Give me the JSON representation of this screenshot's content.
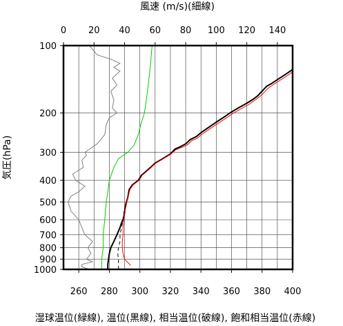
{
  "chart_data": {
    "type": "line",
    "title_top": "風速 (m/s)(細線)",
    "ylabel": "気圧(hPa)",
    "xlabel": "湿球温位(緑線), 温位(黒線), 相当温位(破線), 飽和相当温位(赤線)",
    "x_bottom": {
      "unit": "K",
      "range": [
        250,
        400
      ],
      "ticks": [
        260,
        280,
        300,
        320,
        340,
        360,
        380,
        400
      ]
    },
    "x_top": {
      "unit": "m/s",
      "range": [
        0,
        150
      ],
      "ticks": [
        0,
        20,
        40,
        60,
        80,
        100,
        120,
        140
      ]
    },
    "y": {
      "scale": "log",
      "range": [
        1000,
        100
      ],
      "ticks": [
        100,
        200,
        300,
        400,
        500,
        600,
        700,
        800,
        900,
        1000
      ],
      "tick_labels": [
        "100",
        "200",
        "300",
        "400",
        "500",
        "600",
        "700",
        "800",
        "900",
        "1000"
      ]
    },
    "grid": true,
    "series": [
      {
        "name": "風速",
        "color": "#808080",
        "axis": "top",
        "points": [
          [
            17,
            1000
          ],
          [
            12,
            975
          ],
          [
            12,
            950
          ],
          [
            19,
            925
          ],
          [
            15,
            900
          ],
          [
            18,
            850
          ],
          [
            16,
            800
          ],
          [
            19,
            750
          ],
          [
            14,
            700
          ],
          [
            12,
            650
          ],
          [
            10,
            600
          ],
          [
            5,
            550
          ],
          [
            3,
            500
          ],
          [
            5,
            470
          ],
          [
            10,
            450
          ],
          [
            14,
            425
          ],
          [
            8,
            400
          ],
          [
            6,
            375
          ],
          [
            13,
            350
          ],
          [
            12,
            325
          ],
          [
            15,
            310
          ],
          [
            14,
            300
          ],
          [
            22,
            275
          ],
          [
            27,
            250
          ],
          [
            28,
            225
          ],
          [
            30,
            210
          ],
          [
            35,
            200
          ],
          [
            32,
            190
          ],
          [
            33,
            175
          ],
          [
            31,
            160
          ],
          [
            35,
            150
          ],
          [
            32,
            140
          ],
          [
            37,
            130
          ],
          [
            33,
            125
          ],
          [
            37,
            120
          ],
          [
            31,
            115
          ],
          [
            22,
            110
          ],
          [
            17,
            100
          ]
        ]
      },
      {
        "name": "湿球温位",
        "color": "#00cc00",
        "axis": "bottom",
        "points": [
          [
            275,
            1000
          ],
          [
            275,
            900
          ],
          [
            276,
            800
          ],
          [
            276,
            700
          ],
          [
            277,
            600
          ],
          [
            278,
            500
          ],
          [
            279,
            450
          ],
          [
            280,
            400
          ],
          [
            283,
            350
          ],
          [
            286,
            320
          ],
          [
            292,
            300
          ],
          [
            296,
            280
          ],
          [
            299,
            250
          ],
          [
            301,
            220
          ],
          [
            303,
            200
          ],
          [
            304,
            180
          ],
          [
            305,
            160
          ],
          [
            306,
            140
          ],
          [
            307,
            120
          ],
          [
            308,
            100
          ]
        ]
      },
      {
        "name": "温位",
        "color": "#000000",
        "axis": "bottom",
        "width": 2,
        "points": [
          [
            279,
            1000
          ],
          [
            279,
            950
          ],
          [
            279.5,
            900
          ],
          [
            280,
            850
          ],
          [
            281,
            800
          ],
          [
            283,
            750
          ],
          [
            285,
            700
          ],
          [
            287,
            650
          ],
          [
            288,
            620
          ],
          [
            289,
            600
          ],
          [
            290,
            560
          ],
          [
            290.5,
            520
          ],
          [
            292,
            480
          ],
          [
            293,
            440
          ],
          [
            295,
            420
          ],
          [
            297,
            410
          ],
          [
            299,
            400
          ],
          [
            301,
            380
          ],
          [
            303,
            370
          ],
          [
            307,
            350
          ],
          [
            310,
            335
          ],
          [
            315,
            320
          ],
          [
            320,
            305
          ],
          [
            323,
            290
          ],
          [
            327,
            282
          ],
          [
            330,
            275
          ],
          [
            333,
            263
          ],
          [
            337,
            255
          ],
          [
            340,
            245
          ],
          [
            345,
            232
          ],
          [
            350,
            220
          ],
          [
            355,
            209
          ],
          [
            360,
            198
          ],
          [
            365,
            189
          ],
          [
            370,
            181
          ],
          [
            374,
            174
          ],
          [
            377,
            168
          ],
          [
            380,
            160
          ],
          [
            383,
            152
          ],
          [
            386,
            148
          ],
          [
            390,
            142
          ],
          [
            395,
            135
          ],
          [
            400,
            128
          ]
        ]
      },
      {
        "name": "相当温位",
        "color": "#000000",
        "axis": "bottom",
        "dash": "5,4",
        "points": [
          [
            286,
            1000
          ],
          [
            286,
            950
          ],
          [
            286,
            900
          ],
          [
            285.5,
            850
          ],
          [
            286,
            800
          ],
          [
            287,
            750
          ],
          [
            287,
            700
          ],
          [
            288,
            650
          ],
          [
            289,
            600
          ],
          [
            289.5,
            560
          ],
          [
            290.5,
            520
          ],
          [
            292,
            480
          ],
          [
            293,
            440
          ],
          [
            295,
            420
          ],
          [
            297,
            410
          ],
          [
            299,
            400
          ]
        ]
      },
      {
        "name": "飽和相当温位",
        "color": "#ff0000",
        "axis": "bottom",
        "points": [
          [
            294,
            960
          ],
          [
            292,
            930
          ],
          [
            290,
            900
          ],
          [
            289,
            850
          ],
          [
            288.5,
            800
          ],
          [
            288.5,
            750
          ],
          [
            289,
            700
          ],
          [
            289,
            650
          ],
          [
            289.5,
            600
          ],
          [
            290,
            560
          ],
          [
            291,
            520
          ],
          [
            292,
            480
          ],
          [
            293.5,
            440
          ],
          [
            295.5,
            420
          ],
          [
            297.5,
            410
          ],
          [
            299.5,
            400
          ],
          [
            301.5,
            380
          ],
          [
            303.5,
            370
          ],
          [
            307.5,
            350
          ],
          [
            310.5,
            335
          ],
          [
            315.5,
            320
          ],
          [
            320.5,
            305
          ],
          [
            323.5,
            292
          ],
          [
            327.5,
            285
          ],
          [
            331,
            278
          ],
          [
            334,
            266
          ],
          [
            338,
            258
          ],
          [
            341,
            248
          ],
          [
            346,
            235
          ],
          [
            351,
            223
          ],
          [
            356,
            212
          ],
          [
            361,
            201
          ],
          [
            366,
            192
          ],
          [
            371,
            184
          ],
          [
            375,
            176
          ],
          [
            378,
            170
          ],
          [
            381,
            163
          ],
          [
            384,
            155
          ],
          [
            387,
            150
          ],
          [
            391,
            144
          ],
          [
            396,
            137
          ],
          [
            400,
            131
          ]
        ]
      }
    ]
  }
}
